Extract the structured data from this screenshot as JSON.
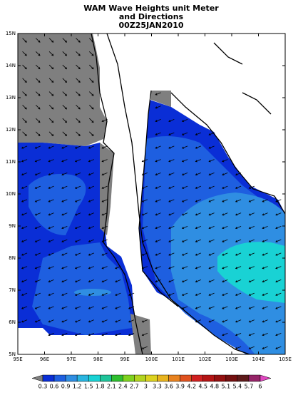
{
  "title": [
    "WAM Wave Heights unit Meter",
    "and Directions",
    "00Z25JAN2010"
  ],
  "lon_labels": [
    "95E",
    "96E",
    "97E",
    "98E",
    "99E",
    "100E",
    "101E",
    "102E",
    "103E",
    "104E",
    "105E"
  ],
  "lat_labels": [
    "15N",
    "14N",
    "13N",
    "12N",
    "11N",
    "10N",
    "9N",
    "8N",
    "7N",
    "6N",
    "5N"
  ],
  "colorbar": {
    "levels": [
      0.3,
      0.6,
      0.9,
      1.2,
      1.5,
      1.8,
      2.1,
      2.4,
      2.7,
      3,
      3.3,
      3.6,
      3.9,
      4.2,
      4.5,
      4.8,
      5.1,
      5.4,
      5.7,
      6
    ],
    "colors": [
      "#7f7f7f",
      "#0a2ed6",
      "#1e5fe0",
      "#2f8ee2",
      "#2ab5e0",
      "#19d2d4",
      "#1fc49a",
      "#2fbf2f",
      "#7fd21f",
      "#b2d41f",
      "#dcd21f",
      "#e8b41f",
      "#e8821f",
      "#e0521f",
      "#d02020",
      "#b41414",
      "#941010",
      "#741010",
      "#5e1a1a",
      "#962468",
      "#e046c0"
    ]
  }
}
